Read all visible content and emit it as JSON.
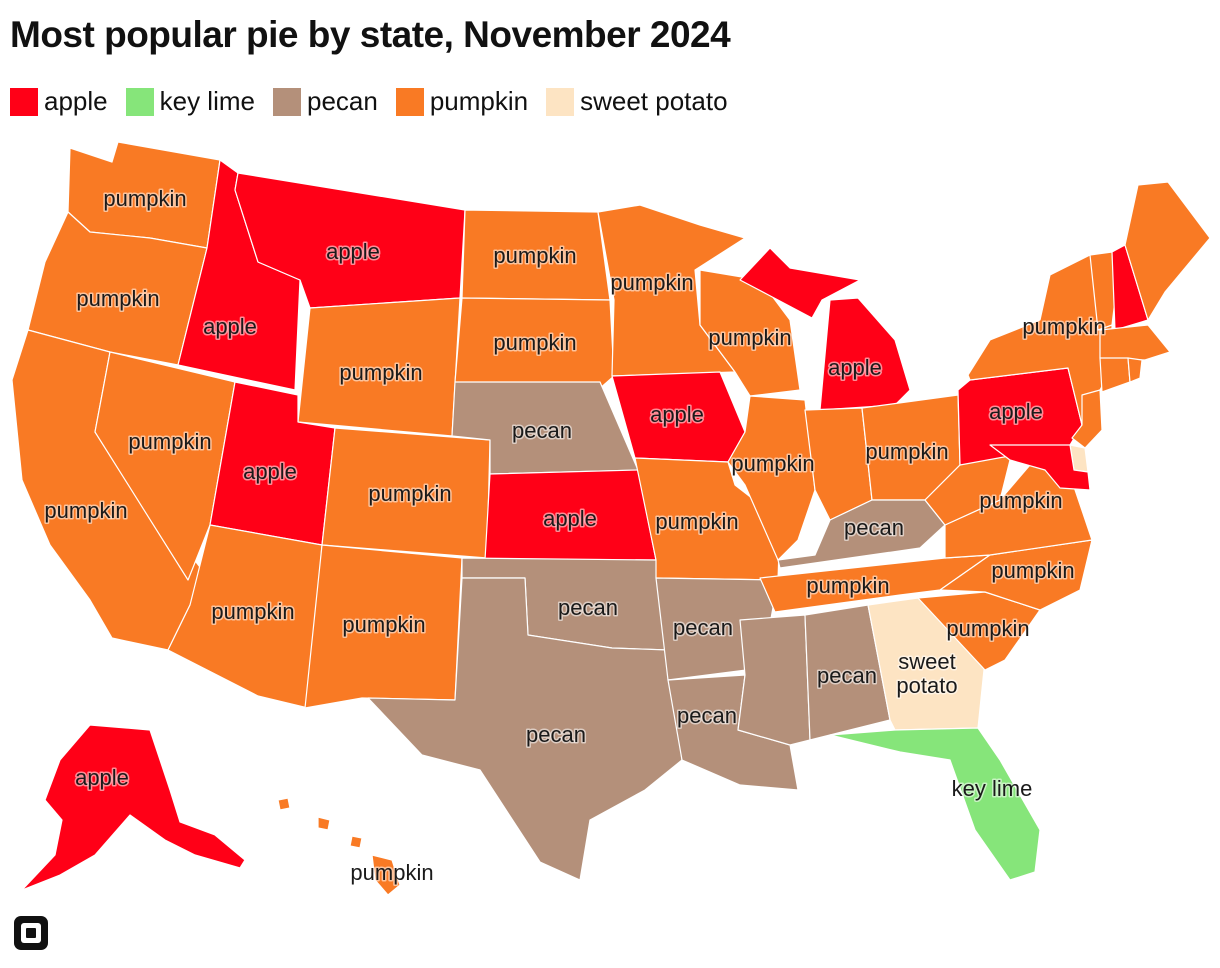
{
  "title": "Most popular pie by state, November 2024",
  "colors": {
    "apple": "#ff0017",
    "key_lime": "#86e57a",
    "pecan": "#b4907a",
    "pumpkin": "#f97a24",
    "sweet_potato": "#fde4c3"
  },
  "legend": [
    {
      "key": "apple",
      "label": "apple"
    },
    {
      "key": "key_lime",
      "label": "key lime"
    },
    {
      "key": "pecan",
      "label": "pecan"
    },
    {
      "key": "pumpkin",
      "label": "pumpkin"
    },
    {
      "key": "sweet_potato",
      "label": "sweet potato"
    }
  ],
  "states": [
    {
      "id": "WA",
      "pie": "pumpkin",
      "label": "pumpkin"
    },
    {
      "id": "OR",
      "pie": "pumpkin",
      "label": "pumpkin"
    },
    {
      "id": "CA",
      "pie": "pumpkin",
      "label": "pumpkin"
    },
    {
      "id": "ID",
      "pie": "apple",
      "label": "apple"
    },
    {
      "id": "NV",
      "pie": "pumpkin",
      "label": "pumpkin"
    },
    {
      "id": "MT",
      "pie": "apple",
      "label": "apple"
    },
    {
      "id": "WY",
      "pie": "pumpkin",
      "label": "pumpkin"
    },
    {
      "id": "UT",
      "pie": "apple",
      "label": "apple"
    },
    {
      "id": "AZ",
      "pie": "pumpkin",
      "label": "pumpkin"
    },
    {
      "id": "CO",
      "pie": "pumpkin",
      "label": "pumpkin"
    },
    {
      "id": "NM",
      "pie": "pumpkin",
      "label": "pumpkin"
    },
    {
      "id": "ND",
      "pie": "pumpkin",
      "label": "pumpkin"
    },
    {
      "id": "SD",
      "pie": "pumpkin",
      "label": "pumpkin"
    },
    {
      "id": "NE",
      "pie": "pecan",
      "label": "pecan"
    },
    {
      "id": "KS",
      "pie": "apple",
      "label": "apple"
    },
    {
      "id": "OK",
      "pie": "pecan",
      "label": "pecan"
    },
    {
      "id": "TX",
      "pie": "pecan",
      "label": "pecan"
    },
    {
      "id": "MN",
      "pie": "pumpkin",
      "label": "pumpkin"
    },
    {
      "id": "IA",
      "pie": "apple",
      "label": "apple"
    },
    {
      "id": "MO",
      "pie": "pumpkin",
      "label": "pumpkin"
    },
    {
      "id": "AR",
      "pie": "pecan",
      "label": "pecan"
    },
    {
      "id": "LA",
      "pie": "pecan",
      "label": "pecan"
    },
    {
      "id": "WI",
      "pie": "pumpkin",
      "label": "pumpkin"
    },
    {
      "id": "IL",
      "pie": "pumpkin",
      "label": "pumpkin"
    },
    {
      "id": "MI",
      "pie": "apple",
      "label": "apple"
    },
    {
      "id": "IN",
      "pie": "pumpkin",
      "label": ""
    },
    {
      "id": "OH",
      "pie": "pumpkin",
      "label": "pumpkin"
    },
    {
      "id": "KY",
      "pie": "pecan",
      "label": "pecan"
    },
    {
      "id": "TN",
      "pie": "pumpkin",
      "label": "pumpkin"
    },
    {
      "id": "MS",
      "pie": "pecan",
      "label": ""
    },
    {
      "id": "AL",
      "pie": "pecan",
      "label": "pecan"
    },
    {
      "id": "GA",
      "pie": "sweet_potato",
      "label": "sweet\npotato"
    },
    {
      "id": "FL",
      "pie": "key_lime",
      "label": "key lime"
    },
    {
      "id": "SC",
      "pie": "pumpkin",
      "label": "pumpkin"
    },
    {
      "id": "NC",
      "pie": "pumpkin",
      "label": "pumpkin"
    },
    {
      "id": "VA",
      "pie": "pumpkin",
      "label": "pumpkin"
    },
    {
      "id": "WV",
      "pie": "pumpkin",
      "label": ""
    },
    {
      "id": "PA",
      "pie": "apple",
      "label": "apple"
    },
    {
      "id": "NY",
      "pie": "pumpkin",
      "label": "pumpkin"
    },
    {
      "id": "VT",
      "pie": "pumpkin",
      "label": ""
    },
    {
      "id": "NH",
      "pie": "apple",
      "label": ""
    },
    {
      "id": "ME",
      "pie": "pumpkin",
      "label": ""
    },
    {
      "id": "MA",
      "pie": "pumpkin",
      "label": ""
    },
    {
      "id": "CT",
      "pie": "pumpkin",
      "label": ""
    },
    {
      "id": "RI",
      "pie": "pumpkin",
      "label": ""
    },
    {
      "id": "NJ",
      "pie": "pumpkin",
      "label": ""
    },
    {
      "id": "DE",
      "pie": "sweet_potato",
      "label": ""
    },
    {
      "id": "MD",
      "pie": "apple",
      "label": ""
    },
    {
      "id": "AK",
      "pie": "apple",
      "label": "apple"
    },
    {
      "id": "HI",
      "pie": "pumpkin",
      "label": "pumpkin"
    }
  ]
}
